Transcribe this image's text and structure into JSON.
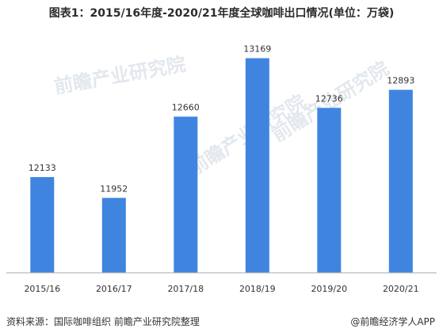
{
  "chart_data": {
    "type": "bar",
    "title": "图表1：2015/16年度-2020/21年度全球咖啡出口情况(单位：万袋)",
    "categories": [
      "2015/16",
      "2016/17",
      "2017/18",
      "2018/19",
      "2019/20",
      "2020/21"
    ],
    "values": [
      12133,
      11952,
      12660,
      13169,
      12736,
      12893
    ],
    "xlabel": "",
    "ylabel": "",
    "ylim": [
      11300,
      13400
    ],
    "bar_color": "#3f85e0",
    "grid": false,
    "legend": "none"
  },
  "watermark": {
    "text": "前瞻产业研究院"
  },
  "footer": {
    "source": "资料来源：国际咖啡组织 前瞻产业研究院整理",
    "brand": "@前瞻经济学人APP"
  },
  "colors": {
    "axis": "#aaaaaa",
    "watermark": "#e3e8ee"
  }
}
